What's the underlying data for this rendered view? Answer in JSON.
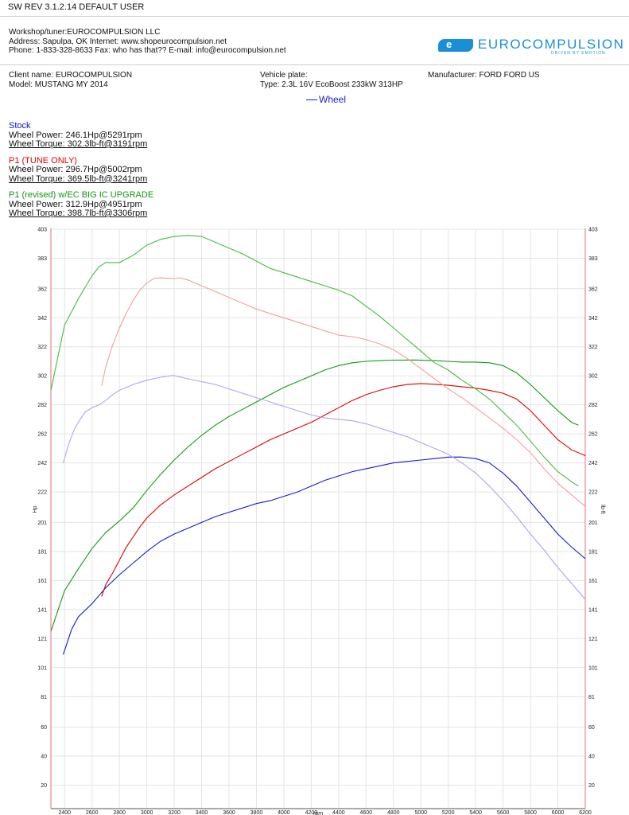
{
  "header": {
    "sw_line": "SW REV 3.1.2.14   DEFAULT USER"
  },
  "workshop": {
    "name_line": "Workshop/tuner:EUROCOMPULSION LLC",
    "address_line": "Address: Sapulpa, OK Internet: www.shopeurocompulsion.net",
    "phone_line": "Phone: 1-833-328-8633 Fax: who has that?? E-mail: info@eurocompulsion.net"
  },
  "logo": {
    "mark": "e",
    "text": "EUROCOMPULSION",
    "tagline": "DRIVEN BY EMOTION"
  },
  "vehicle": {
    "client": "Client name: EUROCOMPULSION",
    "model": "Model: MUSTANG MY 2014",
    "plate": "Vehicle plate:",
    "type": "Type: 2.3L 16V EcoBoost 233kW 313HP",
    "manufacturer": "Manufacturer: FORD   FORD US"
  },
  "legend_label": "Wheel",
  "runs": [
    {
      "title": "Stock",
      "power": "Wheel Power: 246.1Hp@5291rpm",
      "torque": "Wheel Torque: 302.3lb-ft@3191rpm",
      "color": "#1010d0"
    },
    {
      "title": "P1 (TUNE ONLY)",
      "power": "Wheel Power: 296.7Hp@5002rpm",
      "torque": "Wheel Torque: 369.5lb-ft@3241rpm",
      "color": "#e00000"
    },
    {
      "title": "P1 (revised) w/EC BIG IC UPGRADE",
      "power": "Wheel Power: 312.9Hp@4951rpm",
      "torque": "Wheel Torque: 398.7lb-ft@3306rpm",
      "color": "#119911"
    }
  ],
  "chart_data": {
    "type": "line",
    "xlabel": "rpm",
    "ylabel_left": "Hp",
    "ylabel_right": "lb-ft",
    "xlim": [
      2300,
      6200
    ],
    "ylim": [
      0,
      403
    ],
    "x_ticks": [
      2400,
      2600,
      2800,
      3000,
      3200,
      3400,
      3600,
      3800,
      4000,
      4200,
      4400,
      4600,
      4800,
      5000,
      5200,
      5400,
      5600,
      5800,
      6000,
      6200
    ],
    "y_ticks": [
      20,
      40,
      60,
      81,
      101,
      121,
      141,
      161,
      181,
      201,
      222,
      242,
      262,
      282,
      302,
      322,
      342,
      362,
      383,
      403
    ],
    "grid": true,
    "series": [
      {
        "name": "Stock",
        "measure": "power",
        "color": "#1818d8",
        "x": [
          2390,
          2450,
          2500,
          2600,
          2700,
          2800,
          2900,
          3000,
          3100,
          3200,
          3300,
          3400,
          3500,
          3600,
          3700,
          3800,
          3900,
          4000,
          4100,
          4200,
          4300,
          4400,
          4500,
          4600,
          4700,
          4800,
          4900,
          5000,
          5100,
          5200,
          5291,
          5400,
          5500,
          5600,
          5700,
          5800,
          5900,
          6000,
          6100,
          6200
        ],
        "y": [
          110,
          127,
          136,
          145,
          156,
          165,
          173,
          181,
          188,
          193,
          197,
          201,
          205,
          208,
          211,
          214,
          216,
          219,
          222,
          226,
          230,
          233,
          236,
          238,
          240,
          242,
          243,
          244,
          245,
          246,
          246.1,
          245,
          242,
          235,
          226,
          215,
          204,
          193,
          184,
          176
        ]
      },
      {
        "name": "P1 (TUNE ONLY)",
        "measure": "power",
        "color": "#e00000",
        "x": [
          2670,
          2700,
          2750,
          2800,
          2850,
          2900,
          2950,
          3000,
          3100,
          3200,
          3300,
          3400,
          3500,
          3600,
          3700,
          3800,
          3900,
          4000,
          4100,
          4200,
          4300,
          4400,
          4500,
          4600,
          4700,
          4800,
          4900,
          5002,
          5100,
          5200,
          5300,
          5400,
          5500,
          5600,
          5700,
          5800,
          5900,
          6000,
          6100,
          6200
        ],
        "y": [
          150,
          158,
          166,
          175,
          184,
          191,
          198,
          204,
          213,
          220,
          226,
          232,
          238,
          243,
          248,
          253,
          258,
          262,
          266,
          270,
          275,
          280,
          285,
          289,
          292,
          294.5,
          296,
          296.7,
          296.2,
          295.5,
          294.5,
          293.5,
          292,
          290,
          286,
          278,
          268,
          258,
          251,
          247
        ]
      },
      {
        "name": "P1 (revised) w/EC BIG IC UPGRADE",
        "measure": "power",
        "color": "#119911",
        "x": [
          2300,
          2400,
          2500,
          2600,
          2700,
          2800,
          2900,
          3000,
          3100,
          3200,
          3300,
          3400,
          3500,
          3600,
          3700,
          3800,
          3900,
          4000,
          4100,
          4200,
          4300,
          4400,
          4500,
          4600,
          4700,
          4800,
          4951,
          5100,
          5200,
          5300,
          5400,
          5500,
          5600,
          5700,
          5800,
          5900,
          6000,
          6100,
          6150
        ],
        "y": [
          126,
          154,
          169,
          183,
          194,
          202,
          211,
          223,
          234,
          244,
          253,
          261,
          268,
          274,
          279,
          284,
          289,
          294,
          298,
          302,
          306,
          309,
          311,
          312,
          312.5,
          312.8,
          312.9,
          312.5,
          312,
          311.5,
          311.5,
          311,
          309,
          304,
          296,
          287,
          278,
          270,
          268
        ]
      },
      {
        "name": "Stock",
        "measure": "torque",
        "color": "#a8a8ee",
        "x": [
          2390,
          2430,
          2470,
          2500,
          2550,
          2600,
          2650,
          2700,
          2750,
          2800,
          2900,
          3000,
          3100,
          3191,
          3300,
          3400,
          3500,
          3600,
          3700,
          3800,
          3900,
          4000,
          4100,
          4200,
          4300,
          4400,
          4500,
          4600,
          4700,
          4800,
          4900,
          5000,
          5100,
          5200,
          5300,
          5400,
          5500,
          5600,
          5700,
          5800,
          5900,
          6000,
          6100,
          6200
        ],
        "y": [
          242,
          255,
          265,
          270,
          277,
          280,
          282,
          285,
          289,
          292,
          296,
          299,
          301,
          302.3,
          300,
          298,
          296,
          293,
          290,
          287,
          284,
          281,
          278,
          275,
          273,
          272,
          271,
          269,
          266,
          263,
          260,
          256,
          252,
          248,
          242,
          235,
          226,
          216,
          205,
          193,
          182,
          170,
          159,
          148
        ]
      },
      {
        "name": "P1 (TUNE ONLY)",
        "measure": "torque",
        "color": "#f0a0a0",
        "x": [
          2670,
          2700,
          2750,
          2800,
          2850,
          2900,
          2950,
          3000,
          3050,
          3100,
          3150,
          3200,
          3241,
          3300,
          3400,
          3500,
          3600,
          3700,
          3800,
          3900,
          4000,
          4100,
          4200,
          4300,
          4400,
          4500,
          4600,
          4700,
          4800,
          4900,
          5000,
          5100,
          5200,
          5300,
          5400,
          5500,
          5600,
          5700,
          5800,
          5900,
          6000,
          6100,
          6200
        ],
        "y": [
          295,
          308,
          323,
          335,
          345,
          354,
          361,
          366,
          369,
          369.5,
          369.2,
          369,
          369.5,
          368,
          364,
          360,
          356,
          352,
          348,
          345,
          342,
          339,
          336,
          333,
          330,
          329,
          327,
          324,
          320,
          314,
          307,
          300,
          293,
          287,
          280,
          273,
          266,
          258,
          249,
          238,
          228,
          220,
          212
        ]
      },
      {
        "name": "P1 (revised) w/EC BIG IC UPGRADE",
        "measure": "torque",
        "color": "#44bb44",
        "x": [
          2300,
          2400,
          2500,
          2600,
          2650,
          2700,
          2750,
          2800,
          2900,
          3000,
          3100,
          3200,
          3306,
          3400,
          3500,
          3600,
          3700,
          3800,
          3900,
          4000,
          4100,
          4200,
          4300,
          4400,
          4500,
          4600,
          4700,
          4800,
          4900,
          5000,
          5100,
          5200,
          5300,
          5400,
          5500,
          5600,
          5700,
          5800,
          5900,
          6000,
          6100,
          6150
        ],
        "y": [
          292,
          337,
          355,
          371,
          377,
          380,
          380,
          380,
          385,
          392,
          396,
          398,
          398.7,
          398,
          394,
          390,
          386,
          381,
          376,
          373,
          370,
          367,
          364,
          361,
          357,
          350,
          343,
          335,
          327,
          319,
          311,
          306,
          299,
          293,
          286,
          277,
          268,
          257,
          246,
          236,
          229,
          226
        ]
      }
    ]
  }
}
